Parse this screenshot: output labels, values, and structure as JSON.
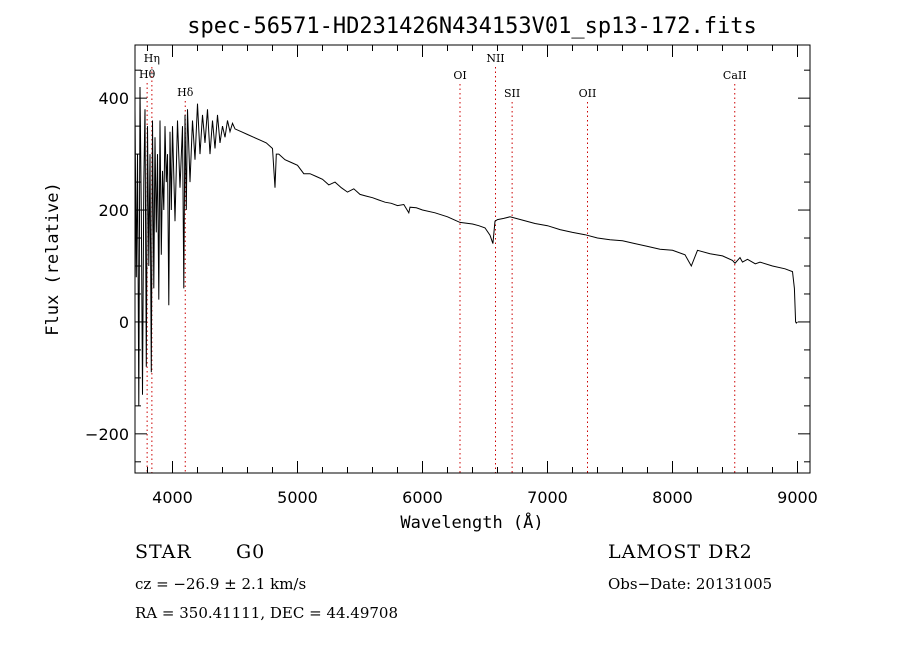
{
  "chart_data": {
    "type": "line",
    "title": "spec-56571-HD231426N434153V01_sp13-172.fits",
    "xlabel": "Wavelength (Å)",
    "ylabel": "Flux (relative)",
    "xlim": [
      3700,
      9100
    ],
    "ylim": [
      -270,
      495
    ],
    "x_ticks": [
      4000,
      5000,
      6000,
      7000,
      8000,
      9000
    ],
    "y_ticks": [
      -200,
      0,
      200,
      400
    ],
    "x_tick_labels": [
      "4000",
      "5000",
      "6000",
      "7000",
      "8000",
      "9000"
    ],
    "y_tick_labels": [
      "−200",
      "0",
      "200",
      "400"
    ],
    "grid": false,
    "series": [
      {
        "x": [
          3700,
          3710,
          3720,
          3730,
          3740,
          3750,
          3760,
          3770,
          3780,
          3790,
          3800,
          3810,
          3820,
          3830,
          3840,
          3850,
          3860,
          3870,
          3880,
          3890,
          3900,
          3910,
          3920,
          3930,
          3940,
          3950,
          3960,
          3970,
          3980,
          3990,
          4000,
          4020,
          4040,
          4060,
          4080,
          4090,
          4100,
          4110,
          4120,
          4140,
          4160,
          4180,
          4200,
          4220,
          4240,
          4260,
          4280,
          4300,
          4320,
          4340,
          4360,
          4380,
          4400,
          4420,
          4440,
          4460,
          4480,
          4500,
          4550,
          4600,
          4650,
          4700,
          4750,
          4800,
          4820,
          4830,
          4850,
          4900,
          4950,
          5000,
          5050,
          5100,
          5150,
          5200,
          5250,
          5300,
          5350,
          5400,
          5450,
          5500,
          5550,
          5600,
          5650,
          5700,
          5750,
          5800,
          5850,
          5890,
          5900,
          5950,
          6000,
          6100,
          6200,
          6300,
          6400,
          6450,
          6500,
          6540,
          6563,
          6580,
          6600,
          6650,
          6700,
          6800,
          6900,
          7000,
          7100,
          7200,
          7300,
          7400,
          7500,
          7600,
          7700,
          7800,
          7900,
          8000,
          8100,
          8150,
          8200,
          8300,
          8400,
          8480,
          8500,
          8540,
          8560,
          8600,
          8662,
          8700,
          8800,
          8900,
          8960,
          8975,
          8985,
          8990,
          9000
        ],
        "y": [
          380,
          80,
          300,
          -150,
          420,
          200,
          -130,
          250,
          380,
          -80,
          350,
          100,
          300,
          -90,
          360,
          60,
          330,
          160,
          300,
          40,
          360,
          120,
          270,
          200,
          350,
          250,
          300,
          30,
          340,
          200,
          350,
          180,
          360,
          240,
          350,
          60,
          370,
          200,
          380,
          250,
          360,
          290,
          390,
          300,
          370,
          320,
          380,
          300,
          360,
          310,
          370,
          320,
          350,
          330,
          360,
          340,
          355,
          345,
          340,
          335,
          330,
          325,
          320,
          310,
          240,
          300,
          300,
          290,
          285,
          280,
          265,
          265,
          260,
          255,
          245,
          250,
          240,
          232,
          238,
          228,
          225,
          222,
          218,
          214,
          212,
          208,
          210,
          195,
          205,
          204,
          200,
          195,
          188,
          178,
          175,
          172,
          168,
          155,
          140,
          180,
          183,
          185,
          188,
          182,
          176,
          172,
          165,
          160,
          156,
          150,
          147,
          145,
          140,
          135,
          130,
          128,
          120,
          100,
          128,
          122,
          118,
          110,
          105,
          115,
          107,
          112,
          104,
          107,
          100,
          95,
          90,
          60,
          0,
          -2,
          0
        ]
      }
    ],
    "annotations": [
      {
        "label": "Hη",
        "x": 3835
      },
      {
        "label": "Hθ",
        "x": 3797
      },
      {
        "label": "Hδ",
        "x": 4102
      },
      {
        "label": "OI",
        "x": 6300
      },
      {
        "label": "NII",
        "x": 6584
      },
      {
        "label": "SII",
        "x": 6717
      },
      {
        "label": "OII",
        "x": 7320
      },
      {
        "label": "CaII",
        "x": 8498
      }
    ]
  },
  "footer": {
    "object_class": "STAR",
    "subclass": "G0",
    "survey": "LAMOST DR2",
    "redshift": "cz = −26.9 ± 2.1 km/s",
    "obs_date": "Obs−Date: 20131005",
    "coords": "RA = 350.41111, DEC =  44.49708"
  },
  "colors": {
    "line": "#000000",
    "marker": "#cc0000",
    "background": "#ffffff"
  }
}
